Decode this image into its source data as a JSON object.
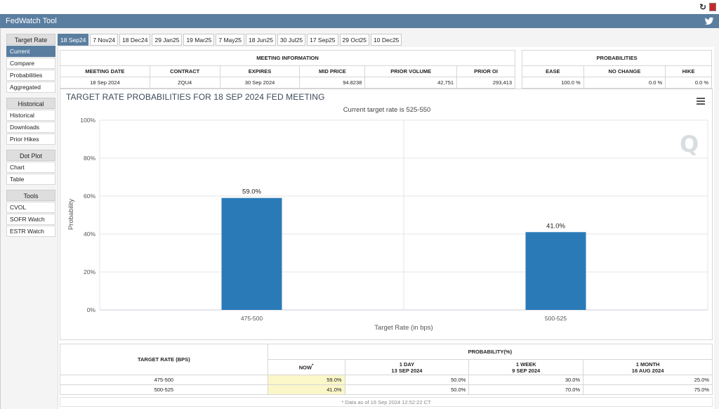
{
  "app": {
    "title": "FedWatch Tool"
  },
  "sidebar": {
    "groups": [
      {
        "heading": "Target Rate",
        "items": [
          {
            "label": "Current",
            "active": true
          },
          {
            "label": "Compare",
            "active": false
          },
          {
            "label": "Probabilities",
            "active": false
          },
          {
            "label": "Aggregated",
            "active": false
          }
        ]
      },
      {
        "heading": "Historical",
        "items": [
          {
            "label": "Historical",
            "active": false
          },
          {
            "label": "Downloads",
            "active": false
          },
          {
            "label": "Prior Hikes",
            "active": false
          }
        ]
      },
      {
        "heading": "Dot Plot",
        "items": [
          {
            "label": "Chart",
            "active": false
          },
          {
            "label": "Table",
            "active": false
          }
        ]
      },
      {
        "heading": "Tools",
        "items": [
          {
            "label": "CVOL",
            "active": false
          },
          {
            "label": "SOFR Watch",
            "active": false
          },
          {
            "label": "ESTR Watch",
            "active": false
          }
        ]
      }
    ]
  },
  "tabs": [
    "18 Sep24",
    "7 Nov24",
    "18 Dec24",
    "29 Jan25",
    "19 Mar25",
    "7 May25",
    "18 Jun25",
    "30 Jul25",
    "17 Sep25",
    "29 Oct25",
    "10 Dec25"
  ],
  "active_tab": 0,
  "meeting_info": {
    "caption": "MEETING INFORMATION",
    "headers": [
      "MEETING DATE",
      "CONTRACT",
      "EXPIRES",
      "MID PRICE",
      "PRIOR VOLUME",
      "PRIOR OI"
    ],
    "values": [
      "18 Sep 2024",
      "ZQU4",
      "30 Sep 2024",
      "94.8238",
      "42,751",
      "293,413"
    ]
  },
  "probabilities": {
    "caption": "PROBABILITIES",
    "headers": [
      "EASE",
      "NO CHANGE",
      "HIKE"
    ],
    "values": [
      "100.0 %",
      "0.0 %",
      "0.0 %"
    ]
  },
  "chart_data": {
    "type": "bar",
    "title": "TARGET RATE PROBABILITIES FOR 18 SEP 2024 FED MEETING",
    "subtitle": "Current target rate is 525-550",
    "categories": [
      "475-500",
      "500-525"
    ],
    "values": [
      59.0,
      41.0
    ],
    "value_labels": [
      "59.0%",
      "41.0%"
    ],
    "xlabel": "Target Rate (in bps)",
    "ylabel": "Probability",
    "ylim": [
      0,
      100
    ],
    "yticks": [
      0,
      20,
      40,
      60,
      80,
      100
    ],
    "ytick_labels": [
      "0%",
      "20%",
      "40%",
      "60%",
      "80%",
      "100%"
    ],
    "grid": true,
    "bar_color": "#2a7ab8"
  },
  "prob_table": {
    "rate_header": "TARGET RATE (BPS)",
    "prob_header": "PROBABILITY(%)",
    "columns": [
      {
        "line1": "NOW",
        "line2": "",
        "marker": "*"
      },
      {
        "line1": "1 DAY",
        "line2": "13 SEP 2024"
      },
      {
        "line1": "1 WEEK",
        "line2": "9 SEP 2024"
      },
      {
        "line1": "1 MONTH",
        "line2": "16 AUG 2024"
      }
    ],
    "rows": [
      {
        "rate": "475-500",
        "now": "59.0%",
        "day": "50.0%",
        "week": "30.0%",
        "month": "25.0%"
      },
      {
        "rate": "500-525",
        "now": "41.0%",
        "day": "50.0%",
        "week": "70.0%",
        "month": "75.0%"
      }
    ],
    "footnote": "* Data as of 16 Sep 2024 12:52:22 CT"
  }
}
